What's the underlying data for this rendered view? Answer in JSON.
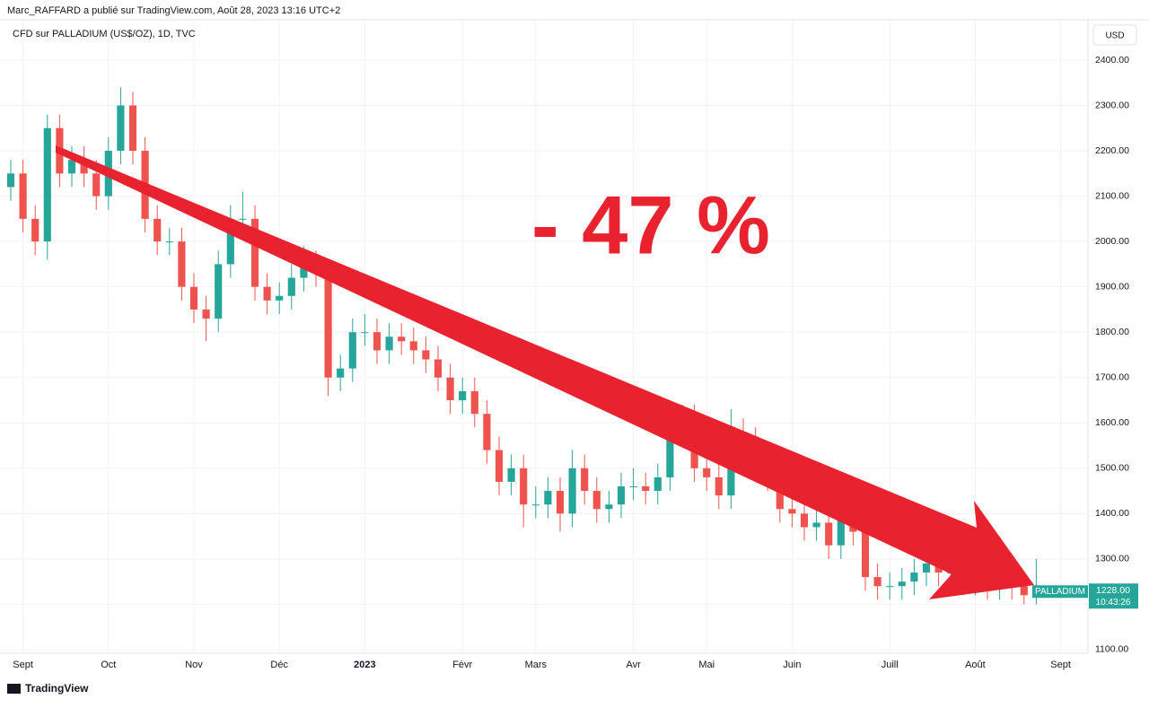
{
  "chart_data": {
    "type": "candlestick",
    "header": "Marc_RAFFARD a publié sur TradingView.com, Août 28, 2023 13:16 UTC+2",
    "title": "CFD sur PALLADIUM (US$/OZ), 1D, TVC",
    "currency": "USD",
    "annotation": "- 47 %",
    "symbol_label": "PALLADIUM",
    "last_price_label": "1228.00",
    "countdown": "10:43:26",
    "footer": "TradingView",
    "up_color": "#26a69a",
    "down_color": "#ef5350",
    "grid": true,
    "categories": [
      null,
      "Sept",
      null,
      null,
      null,
      null,
      null,
      null,
      "Oct",
      null,
      null,
      null,
      null,
      null,
      null,
      "Nov",
      null,
      null,
      null,
      null,
      null,
      null,
      "Déc",
      null,
      null,
      null,
      null,
      null,
      null,
      "2023",
      null,
      null,
      null,
      null,
      null,
      null,
      null,
      "Févr",
      null,
      null,
      null,
      null,
      null,
      "Mars",
      null,
      null,
      null,
      null,
      null,
      null,
      null,
      "Avr",
      null,
      null,
      null,
      null,
      null,
      "Mai",
      null,
      null,
      null,
      null,
      null,
      null,
      "Juin",
      null,
      null,
      null,
      null,
      null,
      null,
      null,
      "Juill",
      null,
      null,
      null,
      null,
      null,
      null,
      "Août",
      null,
      null,
      null,
      null,
      null,
      null,
      "Sept"
    ],
    "open": [
      2120,
      2150,
      2050,
      2000,
      2250,
      2150,
      2180,
      2150,
      2100,
      2200,
      2300,
      2200,
      2050,
      2000,
      2000,
      1900,
      1850,
      1830,
      1950,
      2050,
      2050,
      1900,
      1870,
      1880,
      1920,
      1950,
      1930,
      1700,
      1720,
      1800,
      1800,
      1760,
      1790,
      1780,
      1760,
      1740,
      1700,
      1650,
      1670,
      1620,
      1540,
      1470,
      1500,
      1420,
      1420,
      1450,
      1400,
      1500,
      1450,
      1410,
      1420,
      1460,
      1460,
      1450,
      1480,
      1580,
      1610,
      1500,
      1480,
      1440,
      1580,
      1560,
      1500,
      1480,
      1410,
      1400,
      1370,
      1380,
      1330,
      1400,
      1360,
      1260,
      1240,
      1240,
      1250,
      1270,
      1290,
      1270,
      1270,
      1250,
      1250,
      1240,
      1280,
      1240,
      1220,
      null,
      null
    ],
    "high": [
      2180,
      2180,
      2080,
      2280,
      2280,
      2210,
      2210,
      2180,
      2230,
      2340,
      2330,
      2230,
      2080,
      2030,
      2030,
      1930,
      1880,
      1980,
      2080,
      2110,
      2080,
      1930,
      1910,
      1950,
      1990,
      1980,
      1960,
      1750,
      1830,
      1840,
      1830,
      1820,
      1820,
      1810,
      1790,
      1770,
      1730,
      1700,
      1700,
      1650,
      1570,
      1530,
      1530,
      1460,
      1480,
      1480,
      1540,
      1530,
      1480,
      1450,
      1490,
      1500,
      1490,
      1510,
      1640,
      1640,
      1640,
      1530,
      1510,
      1630,
      1610,
      1590,
      1530,
      1510,
      1440,
      1430,
      1410,
      1410,
      1430,
      1430,
      1390,
      1290,
      1270,
      1280,
      1300,
      1320,
      1320,
      1300,
      1300,
      1280,
      1280,
      1340,
      1310,
      1270,
      1300,
      null,
      null
    ],
    "low": [
      2090,
      2020,
      1970,
      1960,
      2120,
      2120,
      2120,
      2070,
      2070,
      2170,
      2170,
      2020,
      1970,
      1970,
      1870,
      1820,
      1780,
      1800,
      1920,
      2020,
      1870,
      1840,
      1840,
      1850,
      1890,
      1900,
      1660,
      1670,
      1690,
      1770,
      1730,
      1730,
      1750,
      1730,
      1710,
      1670,
      1620,
      1620,
      1590,
      1510,
      1440,
      1440,
      1370,
      1390,
      1390,
      1360,
      1370,
      1420,
      1380,
      1380,
      1390,
      1430,
      1420,
      1420,
      1450,
      1550,
      1470,
      1450,
      1410,
      1410,
      1530,
      1470,
      1450,
      1380,
      1370,
      1340,
      1340,
      1300,
      1300,
      1330,
      1230,
      1210,
      1210,
      1210,
      1220,
      1240,
      1240,
      1240,
      1220,
      1220,
      1210,
      1210,
      1210,
      1200,
      1200,
      null,
      null
    ],
    "close": [
      2150,
      2050,
      2000,
      2250,
      2150,
      2180,
      2150,
      2100,
      2200,
      2300,
      2200,
      2050,
      2000,
      2000,
      1900,
      1850,
      1830,
      1950,
      2050,
      2050,
      1900,
      1870,
      1880,
      1920,
      1950,
      1930,
      1700,
      1720,
      1800,
      1800,
      1760,
      1790,
      1780,
      1760,
      1740,
      1700,
      1650,
      1670,
      1620,
      1540,
      1470,
      1500,
      1420,
      1420,
      1450,
      1400,
      1500,
      1450,
      1410,
      1420,
      1460,
      1460,
      1450,
      1480,
      1580,
      1610,
      1500,
      1480,
      1440,
      1580,
      1560,
      1500,
      1480,
      1410,
      1400,
      1370,
      1380,
      1330,
      1400,
      1360,
      1260,
      1240,
      1240,
      1250,
      1270,
      1290,
      1270,
      1270,
      1250,
      1250,
      1240,
      1280,
      1240,
      1220,
      1228,
      null,
      null
    ],
    "ylim": [
      1092,
      2489
    ],
    "yticks": [
      {
        "value": 1100,
        "label": "1100.00"
      },
      {
        "value": 1200,
        "label": "1200.00"
      },
      {
        "value": 1300,
        "label": "1300.00"
      },
      {
        "value": 1400,
        "label": "1400.00"
      },
      {
        "value": 1500,
        "label": "1500.00"
      },
      {
        "value": 1600,
        "label": "1600.00"
      },
      {
        "value": 1700,
        "label": "1700.00"
      },
      {
        "value": 1800,
        "label": "1800.00"
      },
      {
        "value": 1900,
        "label": "1900.00"
      },
      {
        "value": 2000,
        "label": "2000.00"
      },
      {
        "value": 2100,
        "label": "2100.00"
      },
      {
        "value": 2200,
        "label": "2200.00"
      },
      {
        "value": 2300,
        "label": "2300.00"
      },
      {
        "value": 2400,
        "label": "2400.00"
      }
    ]
  }
}
